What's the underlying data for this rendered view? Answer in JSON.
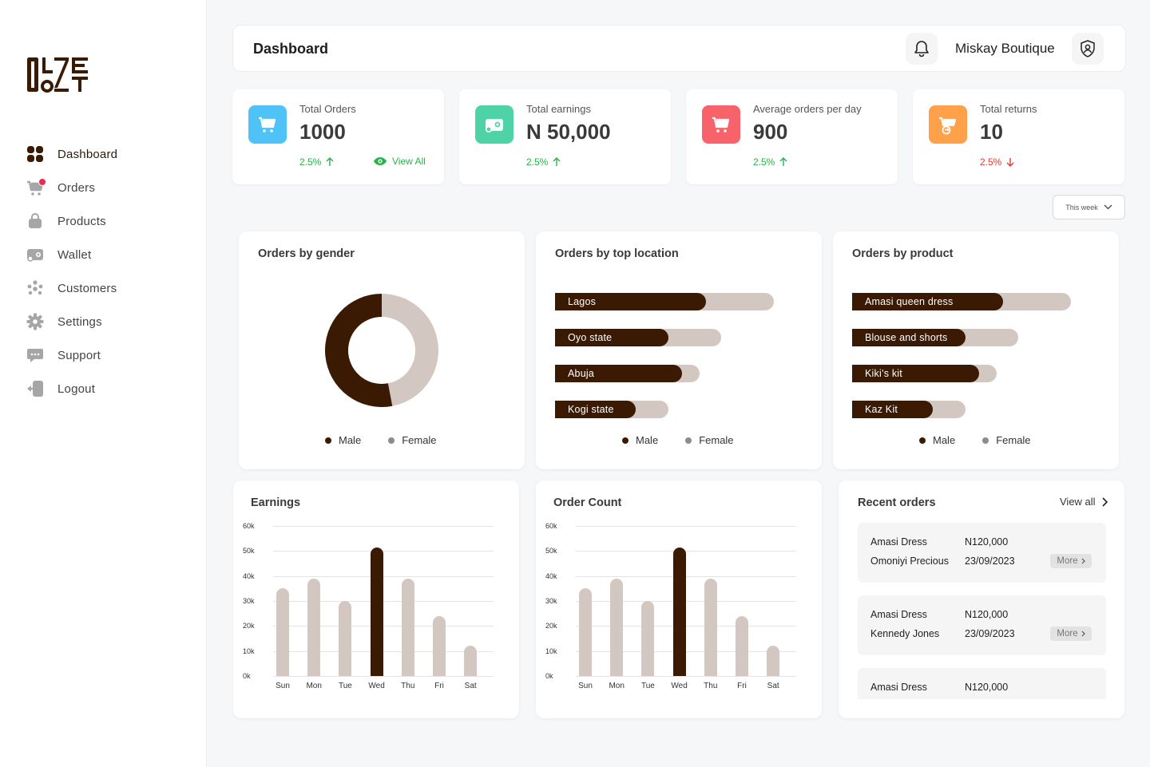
{
  "brand": {
    "logo_text": "OLZE OoZT"
  },
  "sidebar": {
    "items": [
      {
        "label": "Dashboard",
        "icon": "grid-icon",
        "active": true
      },
      {
        "label": "Orders",
        "icon": "cart-icon",
        "badge": true
      },
      {
        "label": "Products",
        "icon": "bag-icon"
      },
      {
        "label": "Wallet",
        "icon": "wallet-icon"
      },
      {
        "label": "Customers",
        "icon": "users-icon"
      },
      {
        "label": "Settings",
        "icon": "gear-icon"
      },
      {
        "label": "Support",
        "icon": "chat-icon"
      },
      {
        "label": "Logout",
        "icon": "logout-icon"
      }
    ]
  },
  "header": {
    "title": "Dashboard",
    "shop_name": "Miskay Boutique"
  },
  "stats": [
    {
      "label": "Total Orders",
      "value": "1000",
      "change": "2.5%",
      "direction": "up",
      "icon_color": "#4fc3f7",
      "view_all": "View All"
    },
    {
      "label": "Total earnings",
      "value": "N 50,000",
      "change": "2.5%",
      "direction": "up",
      "icon_color": "#4dd3a6"
    },
    {
      "label": "Average orders per day",
      "value": "900",
      "change": "2.5%",
      "direction": "up",
      "icon_color": "#f8636b"
    },
    {
      "label": "Total returns",
      "value": "10",
      "change": "2.5%",
      "direction": "down",
      "icon_color": "#ffa14a"
    }
  ],
  "period": "This week",
  "gender_panel": {
    "title": "Orders by gender",
    "legend": [
      "Male",
      "Female"
    ],
    "male_share": 0.53
  },
  "location_panel": {
    "title": "Orders by top location",
    "legend": [
      "Male",
      "Female"
    ],
    "rows": [
      {
        "label": "Lagos",
        "male": 0.69,
        "total": 1.0
      },
      {
        "label": "Oyo state",
        "male": 0.52,
        "total": 0.76
      },
      {
        "label": "Abuja",
        "male": 0.58,
        "total": 0.66
      },
      {
        "label": "Kogi state",
        "male": 0.37,
        "total": 0.52
      }
    ]
  },
  "product_panel": {
    "title": "Orders by product",
    "legend": [
      "Male",
      "Female"
    ],
    "rows": [
      {
        "label": "Amasi queen dress",
        "male": 0.69,
        "total": 1.0
      },
      {
        "label": "Blouse and shorts",
        "male": 0.52,
        "total": 0.76
      },
      {
        "label": "Kiki’s kit",
        "male": 0.58,
        "total": 0.66
      },
      {
        "label": "Kaz Kit",
        "male": 0.37,
        "total": 0.52
      }
    ]
  },
  "chart_data": [
    {
      "type": "bar",
      "title": "Earnings",
      "categories": [
        "Sun",
        "Mon",
        "Tue",
        "Wed",
        "Thu",
        "Fri",
        "Sat"
      ],
      "values": [
        35000,
        39000,
        30000,
        51500,
        39000,
        24000,
        12000
      ],
      "highlight": "Wed",
      "yticks": [
        "0k",
        "10k",
        "20k",
        "30k",
        "40k",
        "50k",
        "60k"
      ],
      "ylim": [
        0,
        60000
      ]
    },
    {
      "type": "bar",
      "title": "Order Count",
      "categories": [
        "Sun",
        "Mon",
        "Tue",
        "Wed",
        "Thu",
        "Fri",
        "Sat"
      ],
      "values": [
        35000,
        39000,
        30000,
        51500,
        39000,
        24000,
        12000
      ],
      "highlight": "Wed",
      "yticks": [
        "0k",
        "10k",
        "20k",
        "30k",
        "40k",
        "50k",
        "60k"
      ],
      "ylim": [
        0,
        60000
      ]
    }
  ],
  "recent_orders": {
    "title": "Recent orders",
    "view_all": "View all",
    "more_label": "More",
    "items": [
      {
        "product": "Amasi Dress",
        "price": "N120,000",
        "customer": "Omoniyi Precious",
        "date": "23/09/2023"
      },
      {
        "product": "Amasi Dress",
        "price": "N120,000",
        "customer": "Kennedy Jones",
        "date": "23/09/2023"
      },
      {
        "product": "Amasi Dress",
        "price": "N120,000",
        "customer": "",
        "date": ""
      }
    ]
  },
  "colors": {
    "brand_dark": "#3b1a04",
    "muted_bar": "#d3c7c1",
    "up": "#27b34a",
    "down": "#e53935"
  }
}
